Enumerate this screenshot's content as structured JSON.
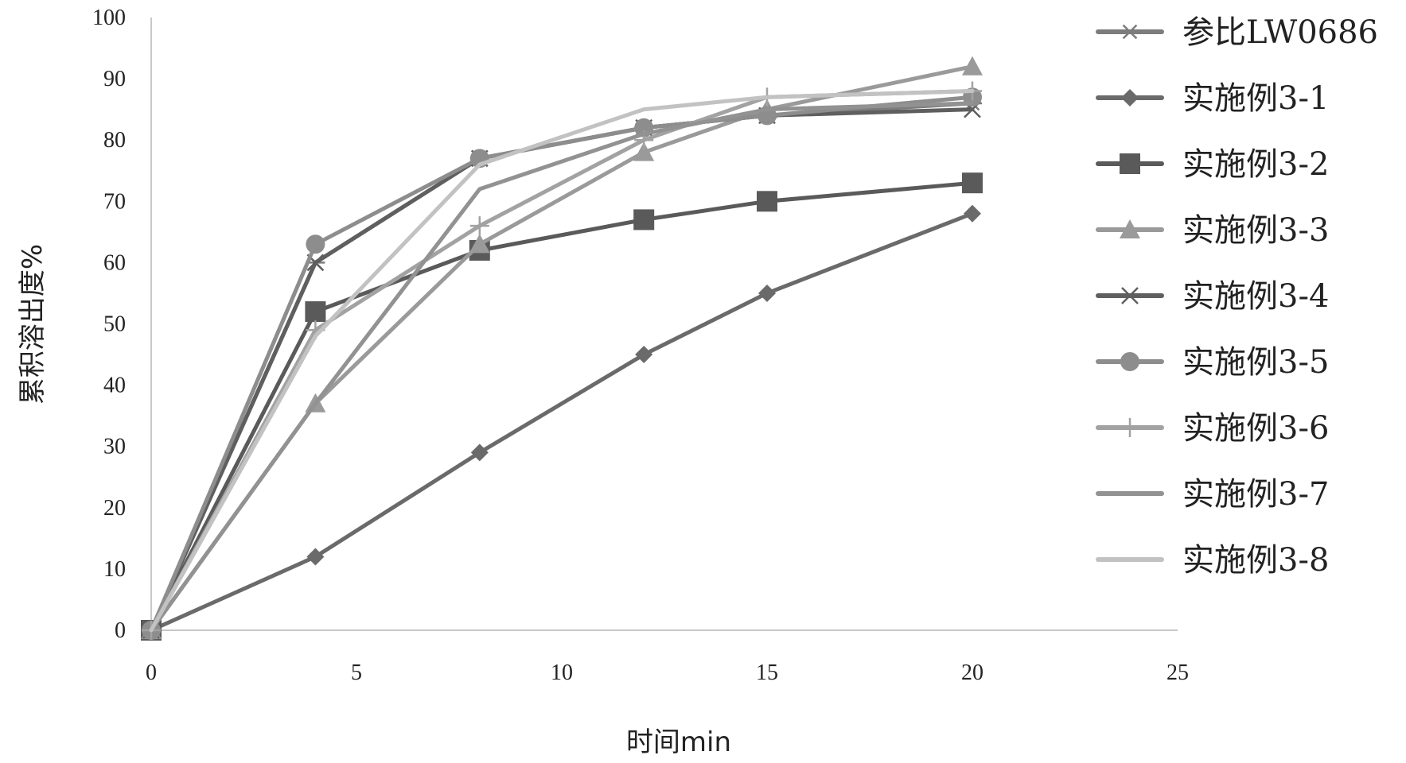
{
  "chart_data": {
    "type": "line",
    "title": "",
    "xlabel": "时间min",
    "ylabel": "累积溶出度%",
    "xlim": [
      0,
      25
    ],
    "ylim": [
      0,
      100
    ],
    "xticks": [
      0,
      5,
      10,
      15,
      20,
      25
    ],
    "yticks": [
      0,
      10,
      20,
      30,
      40,
      50,
      60,
      70,
      80,
      90,
      100
    ],
    "grid": false,
    "legend_position": "right",
    "x": [
      0,
      4,
      8,
      12,
      15,
      20
    ],
    "series": [
      {
        "name": "参比LW0686",
        "values": [
          0,
          60,
          77,
          82,
          84,
          86
        ],
        "color": "#7c7c7c",
        "marker": "asterisk"
      },
      {
        "name": "实施例3-1",
        "values": [
          0,
          12,
          29,
          45,
          55,
          68
        ],
        "color": "#6a6a6a",
        "marker": "diamond"
      },
      {
        "name": "实施例3-2",
        "values": [
          0,
          52,
          62,
          67,
          70,
          73
        ],
        "color": "#5a5a5a",
        "marker": "square"
      },
      {
        "name": "实施例3-3",
        "values": [
          0,
          37,
          63,
          78,
          85,
          92
        ],
        "color": "#9a9a9a",
        "marker": "triangle"
      },
      {
        "name": "实施例3-4",
        "values": [
          0,
          60,
          77,
          82,
          84,
          85
        ],
        "color": "#5f5f5f",
        "marker": "x"
      },
      {
        "name": "实施例3-5",
        "values": [
          0,
          63,
          77,
          82,
          84,
          87
        ],
        "color": "#8d8d8d",
        "marker": "circle"
      },
      {
        "name": "实施例3-6",
        "values": [
          0,
          49,
          66,
          80,
          87,
          88
        ],
        "color": "#a2a2a2",
        "marker": "plus"
      },
      {
        "name": "实施例3-7",
        "values": [
          0,
          37,
          72,
          81,
          85,
          86
        ],
        "color": "#929292",
        "marker": "none"
      },
      {
        "name": "实施例3-8",
        "values": [
          0,
          48,
          76,
          85,
          87,
          88
        ],
        "color": "#c2c2c2",
        "marker": "none"
      }
    ]
  }
}
